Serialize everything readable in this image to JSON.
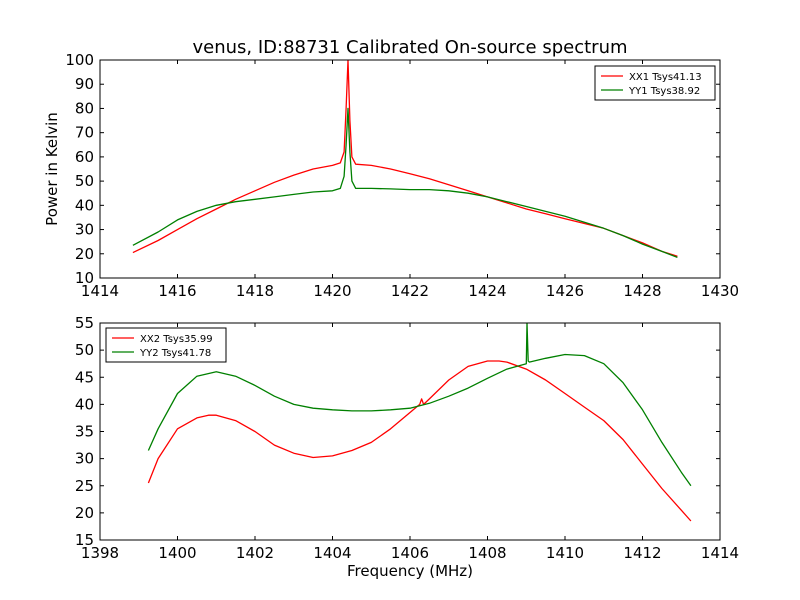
{
  "title": "venus, ID:88731 Calibrated On-source spectrum",
  "colors": {
    "red": "#ff0000",
    "green": "#008000"
  },
  "chart_data": [
    {
      "type": "line",
      "ylabel": "Power in Kelvin",
      "xlabel": "",
      "xlim": [
        1414,
        1430
      ],
      "ylim": [
        10,
        100
      ],
      "xticks": [
        "1414",
        "1416",
        "1418",
        "1420",
        "1422",
        "1424",
        "1426",
        "1428",
        "1430"
      ],
      "yticks": [
        "10",
        "20",
        "30",
        "40",
        "50",
        "60",
        "70",
        "80",
        "90",
        "100"
      ],
      "legend_position": "top-right",
      "grid": false,
      "series": [
        {
          "name": "XX1 Tsys41.13",
          "color": "#ff0000",
          "x": [
            1414.85,
            1415.5,
            1416,
            1416.5,
            1417,
            1417.5,
            1418,
            1418.5,
            1419,
            1419.5,
            1420,
            1420.2,
            1420.3,
            1420.35,
            1420.4,
            1420.45,
            1420.5,
            1420.6,
            1421,
            1421.5,
            1422,
            1422.5,
            1423,
            1423.5,
            1424,
            1424.5,
            1425,
            1425.5,
            1426,
            1426.5,
            1427,
            1427.5,
            1428,
            1428.5,
            1428.9
          ],
          "y": [
            20.5,
            25.5,
            30,
            34.5,
            38.5,
            42.5,
            46,
            49.5,
            52.5,
            55,
            56.5,
            57.5,
            62,
            80,
            100,
            75,
            60,
            57,
            56.5,
            55,
            53,
            51,
            48.5,
            46,
            43.5,
            41,
            38.5,
            36.5,
            34.5,
            32.5,
            30.5,
            27.5,
            24.5,
            21,
            19
          ]
        },
        {
          "name": "YY1 Tsys38.92",
          "color": "#008000",
          "x": [
            1414.85,
            1415.5,
            1416,
            1416.5,
            1417,
            1417.5,
            1418,
            1418.5,
            1419,
            1419.5,
            1420,
            1420.2,
            1420.3,
            1420.35,
            1420.4,
            1420.45,
            1420.5,
            1420.6,
            1421,
            1421.5,
            1422,
            1422.5,
            1423,
            1423.5,
            1424,
            1424.5,
            1425,
            1425.5,
            1426,
            1426.5,
            1427,
            1427.5,
            1428,
            1428.5,
            1428.9
          ],
          "y": [
            23.5,
            29,
            34,
            37.5,
            40,
            41.5,
            42.5,
            43.5,
            44.5,
            45.5,
            46,
            47,
            52,
            65,
            80,
            62,
            50,
            47,
            47,
            46.8,
            46.5,
            46.5,
            46,
            45,
            43.5,
            41.5,
            39.5,
            37.5,
            35.5,
            33,
            30.5,
            27.5,
            24,
            21,
            18.5
          ]
        }
      ]
    },
    {
      "type": "line",
      "ylabel": "",
      "xlabel": "Frequency (MHz)",
      "xlim": [
        1398,
        1414
      ],
      "ylim": [
        15,
        55
      ],
      "xticks": [
        "1398",
        "1400",
        "1402",
        "1404",
        "1406",
        "1408",
        "1410",
        "1412",
        "1414"
      ],
      "yticks": [
        "15",
        "20",
        "25",
        "30",
        "35",
        "40",
        "45",
        "50",
        "55"
      ],
      "legend_position": "top-left",
      "grid": false,
      "series": [
        {
          "name": "XX2 Tsys35.99",
          "color": "#ff0000",
          "x": [
            1399.25,
            1399.5,
            1400,
            1400.5,
            1400.8,
            1401,
            1401.5,
            1402,
            1402.5,
            1403,
            1403.5,
            1404,
            1404.5,
            1405,
            1405.5,
            1406,
            1406.25,
            1406.3,
            1406.35,
            1406.5,
            1407,
            1407.5,
            1408,
            1408.3,
            1408.5,
            1409,
            1409.5,
            1410,
            1410.5,
            1411,
            1411.5,
            1412,
            1412.5,
            1413,
            1413.25
          ],
          "y": [
            25.5,
            30,
            35.5,
            37.5,
            38,
            38,
            37,
            35,
            32.5,
            31,
            30.2,
            30.5,
            31.5,
            33,
            35.5,
            38.5,
            40,
            41,
            40,
            41,
            44.5,
            47,
            48,
            48,
            47.8,
            46.5,
            44.5,
            42,
            39.5,
            37,
            33.5,
            29,
            24.5,
            20.5,
            18.5
          ]
        },
        {
          "name": "YY2 Tsys41.78",
          "color": "#008000",
          "x": [
            1399.25,
            1399.5,
            1400,
            1400.5,
            1401,
            1401.5,
            1402,
            1402.5,
            1403,
            1403.5,
            1404,
            1404.5,
            1405,
            1405.5,
            1406,
            1406.5,
            1407,
            1407.5,
            1408,
            1408.5,
            1409,
            1409.02,
            1409.05,
            1409.08,
            1409.5,
            1410,
            1410.5,
            1411,
            1411.5,
            1412,
            1412.5,
            1413,
            1413.25
          ],
          "y": [
            31.5,
            35.5,
            42,
            45.2,
            46,
            45.2,
            43.5,
            41.5,
            40,
            39.3,
            39,
            38.8,
            38.8,
            39,
            39.3,
            40.2,
            41.5,
            43,
            44.8,
            46.5,
            47.5,
            55,
            48,
            47.8,
            48.5,
            49.2,
            49,
            47.5,
            44,
            39,
            33,
            27.5,
            25
          ]
        }
      ]
    }
  ]
}
